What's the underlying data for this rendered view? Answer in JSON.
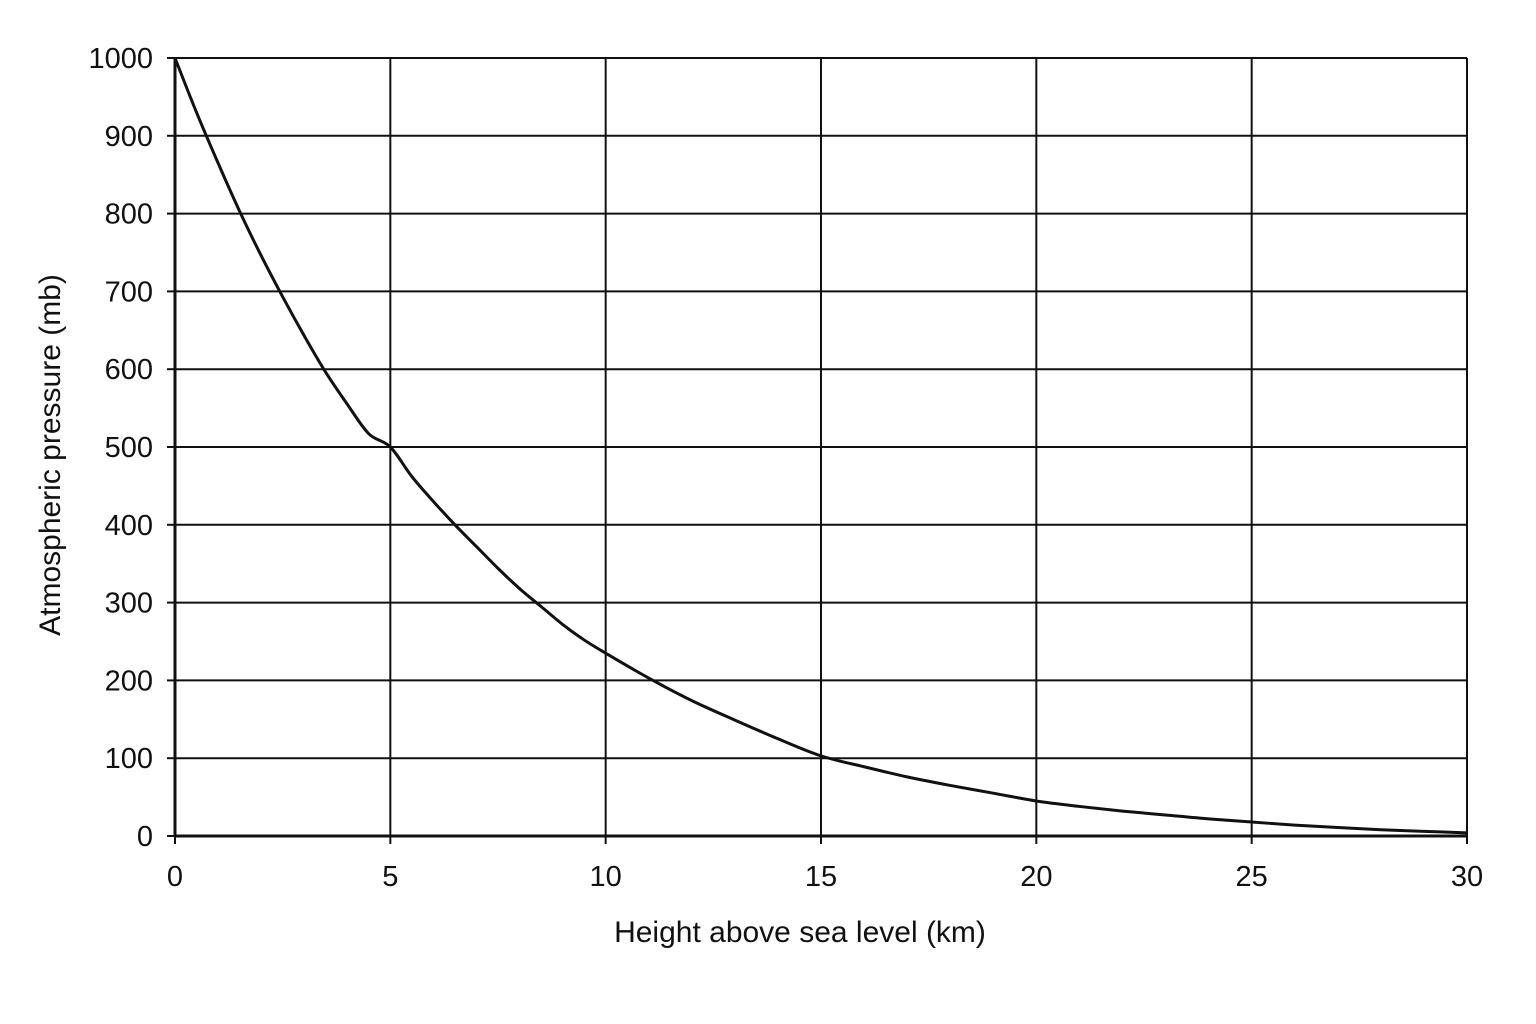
{
  "chart_data": {
    "type": "line",
    "title": "",
    "xlabel": "Height above sea level (km)",
    "ylabel": "Atmospheric pressure (mb)",
    "xlim": [
      0,
      30
    ],
    "ylim": [
      0,
      1000
    ],
    "x_ticks": [
      0,
      5,
      10,
      15,
      20,
      25,
      30
    ],
    "y_ticks": [
      0,
      100,
      200,
      300,
      400,
      500,
      600,
      700,
      800,
      900,
      1000
    ],
    "x_tick_labels": [
      "0",
      "5",
      "10",
      "15",
      "20",
      "25",
      "30"
    ],
    "y_tick_labels": [
      "0",
      "100",
      "200",
      "300",
      "400",
      "500",
      "600",
      "700",
      "800",
      "900",
      "1000"
    ],
    "grid": true,
    "legend": "none",
    "colors": {
      "line": "#111111",
      "grid": "#111111",
      "background": "#ffffff"
    },
    "series": [
      {
        "x": [
          0,
          0.5,
          1,
          1.5,
          2,
          2.5,
          3,
          3.5,
          4,
          4.5,
          5,
          5.5,
          6,
          6.5,
          7,
          7.5,
          8,
          8.5,
          9,
          9.5,
          10,
          11,
          12,
          13,
          14,
          15,
          16,
          17,
          18,
          19,
          20,
          21,
          22,
          23,
          24,
          25,
          26,
          27,
          28,
          29,
          30
        ],
        "y": [
          1000,
          930,
          865,
          803,
          746,
          693,
          643,
          596,
          555,
          517,
          500,
          462,
          430,
          400,
          372,
          344,
          318,
          295,
          272,
          252,
          235,
          203,
          174,
          149,
          125,
          103,
          89,
          76,
          65,
          55,
          45,
          38,
          32,
          27,
          22,
          18,
          14,
          11,
          8,
          6,
          4
        ]
      }
    ]
  }
}
